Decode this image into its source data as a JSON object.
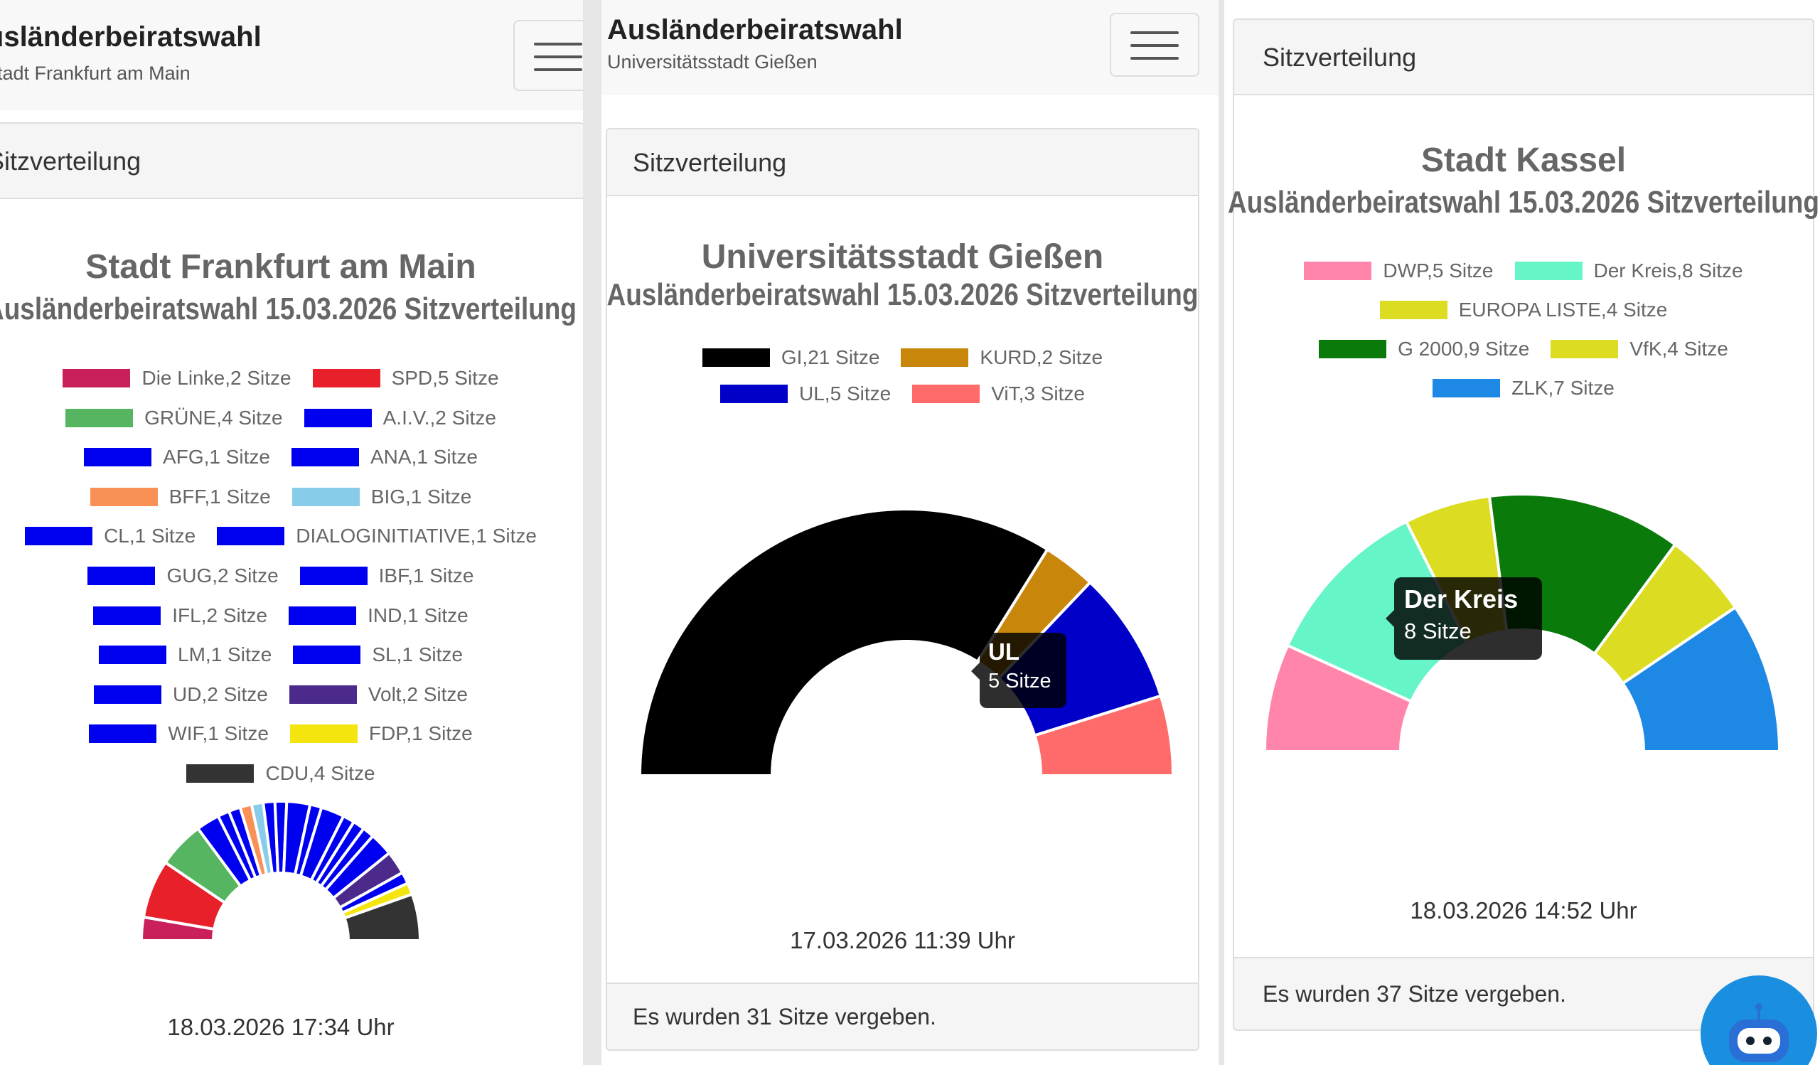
{
  "app_title": "Ausländerbeiratswahl",
  "panels": [
    {
      "city": "Stadt Frankfurt am Main",
      "card_header": "Sitzverteilung",
      "chart_title": "Stadt Frankfurt am Main",
      "chart_subtitle": "Ausländerbeiratswahl 15.03.2026 Sitzverteilung",
      "timestamp": "18.03.2026 17:34 Uhr"
    },
    {
      "city": "Universitätsstadt Gießen",
      "card_header": "Sitzverteilung",
      "chart_title": "Universitätsstadt Gießen",
      "chart_subtitle": "Ausländerbeiratswahl 15.03.2026 Sitzverteilung",
      "timestamp": "17.03.2026 11:39 Uhr",
      "footer": "Es wurden 31 Sitze vergeben.",
      "tooltip": {
        "title": "UL",
        "value": "5 Sitze"
      }
    },
    {
      "card_header": "Sitzverteilung",
      "chart_title": "Stadt Kassel",
      "chart_subtitle": "Ausländerbeiratswahl 15.03.2026 Sitzverteilung",
      "timestamp": "18.03.2026 14:52 Uhr",
      "footer": "Es wurden 37 Sitze vergeben.",
      "tooltip": {
        "title": "Der Kreis",
        "value": "8 Sitze"
      }
    }
  ],
  "chart_data": [
    {
      "type": "pie",
      "variant": "half-donut",
      "title": "Stadt Frankfurt am Main",
      "subtitle": "Ausländerbeiratswahl 15.03.2026 Sitzverteilung",
      "legend_position": "top",
      "slices": [
        {
          "label": "Die Linke,2 Sitze",
          "name": "Die Linke",
          "value": 2,
          "color": "#c91f5b"
        },
        {
          "label": "SPD,5 Sitze",
          "name": "SPD",
          "value": 5,
          "color": "#e8202a"
        },
        {
          "label": "GRÜNE,4 Sitze",
          "name": "GRÜNE",
          "value": 4,
          "color": "#55b560"
        },
        {
          "label": "A.I.V.,2 Sitze",
          "name": "A.I.V.",
          "value": 2,
          "color": "#0000f0"
        },
        {
          "label": "AFG,1 Sitze",
          "name": "AFG",
          "value": 1,
          "color": "#0000f0"
        },
        {
          "label": "ANA,1 Sitze",
          "name": "ANA",
          "value": 1,
          "color": "#0000f0"
        },
        {
          "label": "BFF,1 Sitze",
          "name": "BFF",
          "value": 1,
          "color": "#f99157"
        },
        {
          "label": "BIG,1 Sitze",
          "name": "BIG",
          "value": 1,
          "color": "#87cdea"
        },
        {
          "label": "CL,1 Sitze",
          "name": "CL",
          "value": 1,
          "color": "#0000f0"
        },
        {
          "label": "DIALOGINITIATIVE,1 Sitze",
          "name": "DIALOGINITIATIVE",
          "value": 1,
          "color": "#0000f0"
        },
        {
          "label": "GUG,2 Sitze",
          "name": "GUG",
          "value": 2,
          "color": "#0000f0"
        },
        {
          "label": "IBF,1 Sitze",
          "name": "IBF",
          "value": 1,
          "color": "#0000f0"
        },
        {
          "label": "IFL,2 Sitze",
          "name": "IFL",
          "value": 2,
          "color": "#0000f0"
        },
        {
          "label": "IND,1 Sitze",
          "name": "IND",
          "value": 1,
          "color": "#0000f0"
        },
        {
          "label": "LM,1 Sitze",
          "name": "LM",
          "value": 1,
          "color": "#0000f0"
        },
        {
          "label": "SL,1 Sitze",
          "name": "SL",
          "value": 1,
          "color": "#0000f0"
        },
        {
          "label": "UD,2 Sitze",
          "name": "UD",
          "value": 2,
          "color": "#0000f0"
        },
        {
          "label": "Volt,2 Sitze",
          "name": "Volt",
          "value": 2,
          "color": "#4b2a8c"
        },
        {
          "label": "WIF,1 Sitze",
          "name": "WIF",
          "value": 1,
          "color": "#0000f0"
        },
        {
          "label": "FDP,1 Sitze",
          "name": "FDP",
          "value": 1,
          "color": "#f5e50e"
        },
        {
          "label": "CDU,4 Sitze",
          "name": "CDU",
          "value": 4,
          "color": "#333333"
        }
      ]
    },
    {
      "type": "pie",
      "variant": "half-donut",
      "title": "Universitätsstadt Gießen",
      "subtitle": "Ausländerbeiratswahl 15.03.2026 Sitzverteilung",
      "legend_position": "top",
      "slices": [
        {
          "label": "GI,21 Sitze",
          "name": "GI",
          "value": 21,
          "color": "#000000"
        },
        {
          "label": "KURD,2 Sitze",
          "name": "KURD",
          "value": 2,
          "color": "#c8860a"
        },
        {
          "label": "UL,5 Sitze",
          "name": "UL",
          "value": 5,
          "color": "#0000c8"
        },
        {
          "label": "ViT,3 Sitze",
          "name": "ViT",
          "value": 3,
          "color": "#ff6b6b"
        }
      ]
    },
    {
      "type": "pie",
      "variant": "half-donut",
      "title": "Stadt Kassel",
      "subtitle": "Ausländerbeiratswahl 15.03.2026 Sitzverteilung",
      "legend_position": "top",
      "slices": [
        {
          "label": "DWP,5 Sitze",
          "name": "DWP",
          "value": 5,
          "color": "#ff85aa"
        },
        {
          "label": "Der Kreis,8 Sitze",
          "name": "Der Kreis",
          "value": 8,
          "color": "#66f5c8"
        },
        {
          "label": "EUROPA LISTE,4 Sitze",
          "name": "EUROPA LISTE",
          "value": 4,
          "color": "#dcdc22"
        },
        {
          "label": "G 2000,9 Sitze",
          "name": "G 2000",
          "value": 9,
          "color": "#0a7a0a"
        },
        {
          "label": "VfK,4 Sitze",
          "name": "VfK",
          "value": 4,
          "color": "#dcdc22"
        },
        {
          "label": "ZLK,7 Sitze",
          "name": "ZLK",
          "value": 7,
          "color": "#1e88e5"
        }
      ]
    }
  ]
}
